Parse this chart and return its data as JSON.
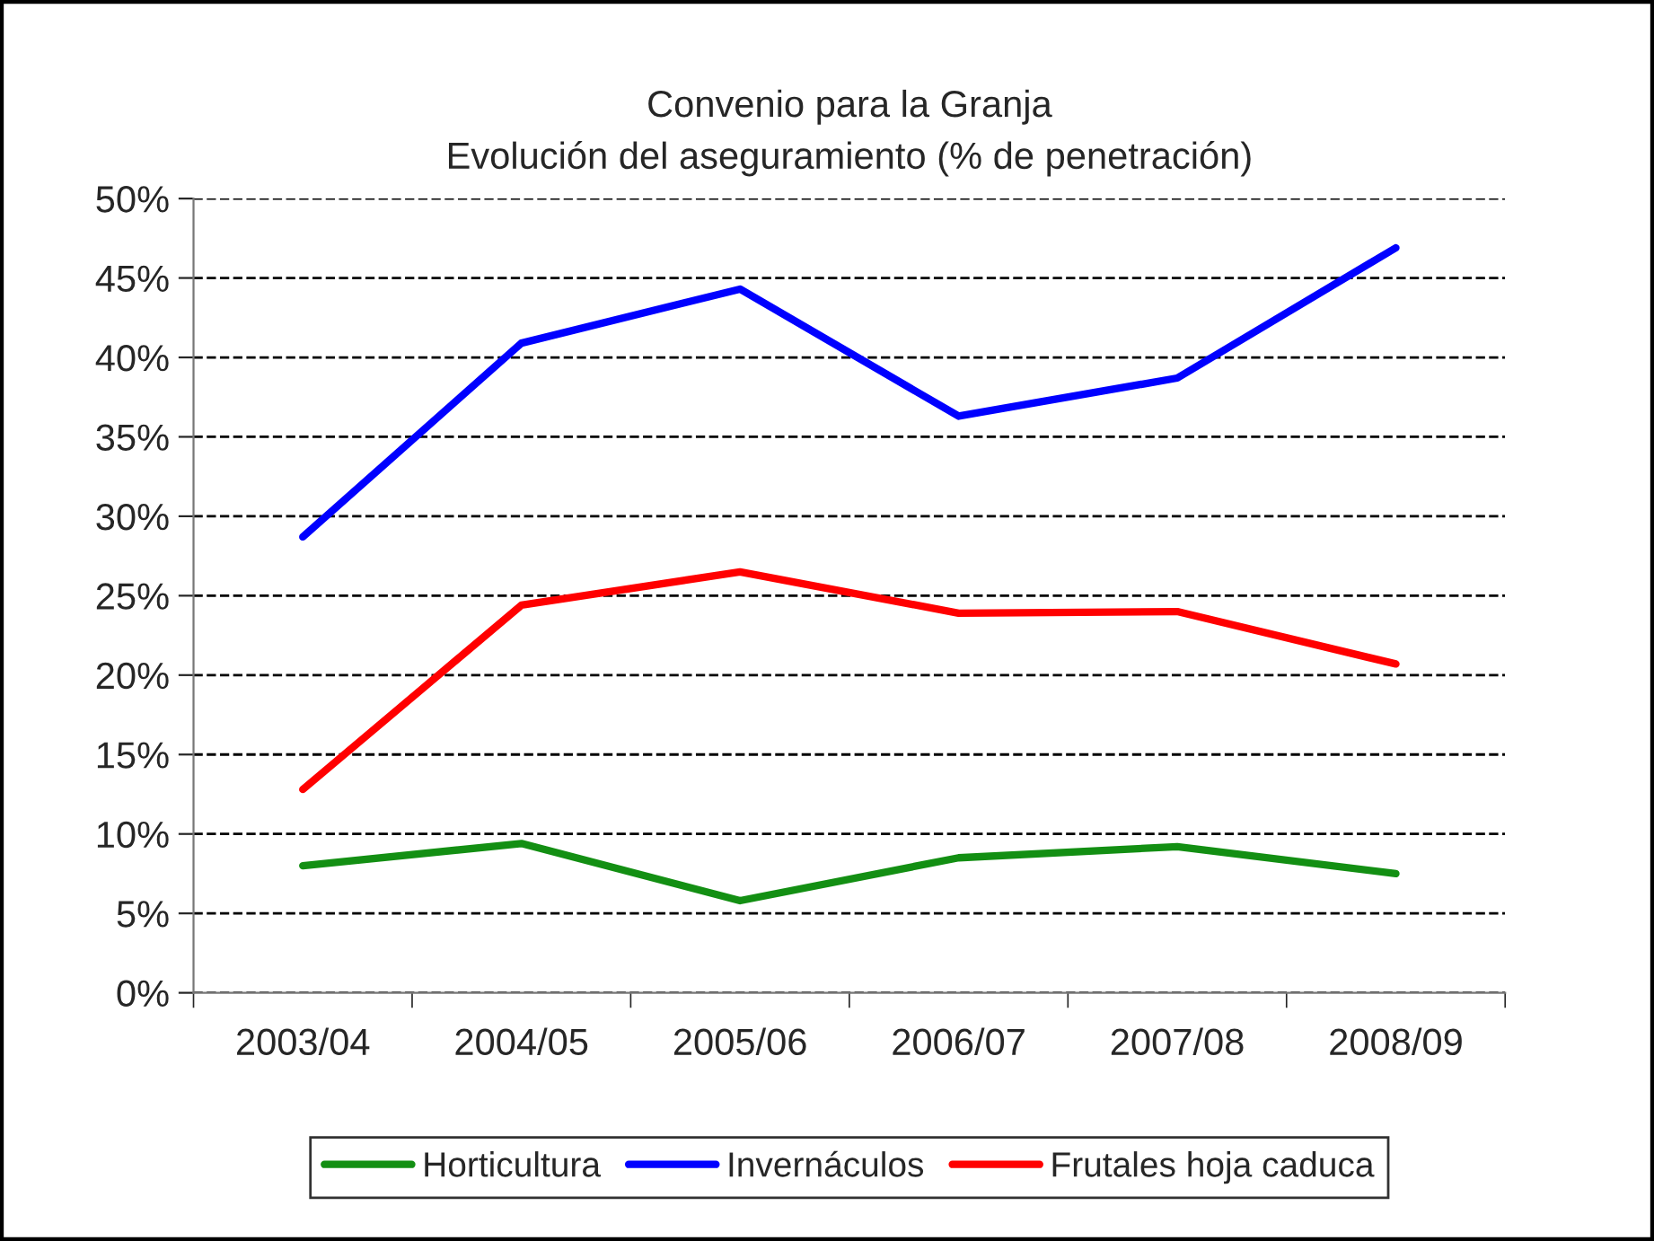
{
  "chart_data": {
    "type": "line",
    "title": "Convenio para la Granja\nEvolución del aseguramiento (% de penetración)",
    "categories": [
      "2003/04",
      "2004/05",
      "2005/06",
      "2006/07",
      "2007/08",
      "2008/09"
    ],
    "series": [
      {
        "name": "Horticultura",
        "color": "#138f13",
        "values": [
          8.0,
          9.4,
          5.8,
          8.5,
          9.2,
          7.5
        ]
      },
      {
        "name": "Invernáculos",
        "color": "#0000ff",
        "values": [
          28.7,
          40.9,
          44.3,
          36.3,
          38.7,
          46.9
        ]
      },
      {
        "name": "Frutales hoja caduca",
        "color": "#ff0000",
        "values": [
          12.8,
          24.4,
          26.5,
          23.9,
          24.0,
          20.7
        ]
      }
    ],
    "ylim": [
      0,
      50
    ],
    "yticks": [
      {
        "value": 0,
        "label": "0%"
      },
      {
        "value": 5,
        "label": "5%"
      },
      {
        "value": 10,
        "label": "10%"
      },
      {
        "value": 15,
        "label": "15%"
      },
      {
        "value": 20,
        "label": "20%"
      },
      {
        "value": 25,
        "label": "25%"
      },
      {
        "value": 30,
        "label": "30%"
      },
      {
        "value": 35,
        "label": "35%"
      },
      {
        "value": 40,
        "label": "40%"
      },
      {
        "value": 45,
        "label": "45%"
      },
      {
        "value": 50,
        "label": "50%"
      }
    ],
    "grid": "y",
    "legend": "bottom",
    "marker": "none",
    "line_style": "solid"
  }
}
